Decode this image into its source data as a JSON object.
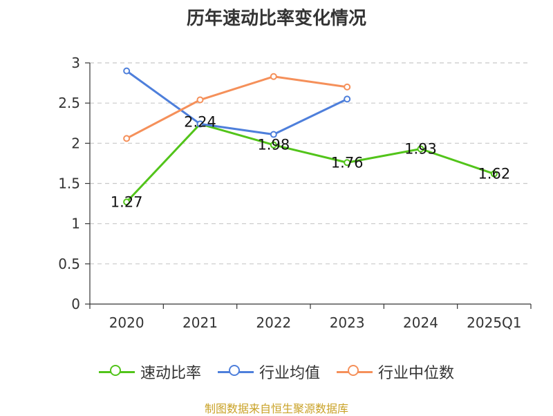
{
  "chart_data": {
    "type": "line",
    "title": "历年速动比率变化情况",
    "categories": [
      "2020",
      "2021",
      "2022",
      "2023",
      "2024",
      "2025Q1"
    ],
    "ylim": [
      0,
      3
    ],
    "yticks": [
      "0",
      "0.5",
      "1",
      "1.5",
      "2",
      "2.5",
      "3"
    ],
    "grid": true,
    "legend_position": "bottom",
    "series": [
      {
        "name": "速动比率",
        "color": "#52c41a",
        "values": [
          1.27,
          2.24,
          1.98,
          1.76,
          1.93,
          1.62
        ],
        "labels": [
          "1.27",
          "2.24",
          "1.98",
          "1.76",
          "1.93",
          "1.62"
        ],
        "show_labels": true
      },
      {
        "name": "行业均值",
        "color": "#4e7fdb",
        "values": [
          2.9,
          2.24,
          2.11,
          2.55,
          null,
          null
        ],
        "show_labels": false
      },
      {
        "name": "行业中位数",
        "color": "#f5905a",
        "values": [
          2.06,
          2.54,
          2.83,
          2.7,
          null,
          null
        ],
        "show_labels": false
      }
    ]
  },
  "source": "制图数据来自恒生聚源数据库"
}
